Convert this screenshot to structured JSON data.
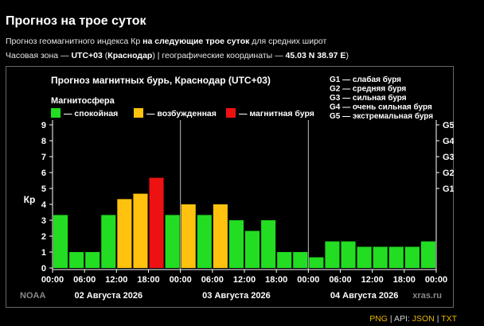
{
  "page": {
    "title": "Прогноз на трое суток",
    "subtitle": {
      "part1": "Прогноз геомагнитного индекса Кр ",
      "part2_bold": "на следующие трое суток",
      "part3": " для средних широт"
    },
    "info": {
      "tz_label": "Часовая зона — ",
      "tz_value": "UTC+03",
      "city_open": " (",
      "city": "Краснодар",
      "coords_label": ") | географические координаты — ",
      "coords_value": "45.03 N 38.97 E",
      "close": ")"
    }
  },
  "footer": {
    "png": "PNG",
    "sep1": "|",
    "api_label": "API:",
    "json": "JSON",
    "sep2": "|",
    "txt": "TXT"
  },
  "chart_data": {
    "type": "bar",
    "title": "Прогноз магнитных бурь, Краснодар (UTC+03)",
    "ylabel": "Кр",
    "ylim": [
      0,
      9
    ],
    "yticks": [
      "0",
      "1",
      "2",
      "3",
      "4",
      "5",
      "6",
      "7",
      "8",
      "9"
    ],
    "right_ticks": [
      {
        "kp": 5,
        "label": "G1"
      },
      {
        "kp": 6,
        "label": "G2"
      },
      {
        "kp": 7,
        "label": "G3"
      },
      {
        "kp": 8,
        "label": "G4"
      },
      {
        "kp": 9,
        "label": "G5"
      }
    ],
    "xticks": [
      "00:00",
      "06:00",
      "12:00",
      "18:00",
      "00:00",
      "06:00",
      "12:00",
      "18:00",
      "00:00",
      "06:00",
      "12:00",
      "18:00",
      "00:00"
    ],
    "days": [
      "02 Августа 2026",
      "03 Августа 2026",
      "04 Августа 2026"
    ],
    "legend_title": "Магнитосфера",
    "legend": [
      {
        "label": "— спокойная",
        "color": "#22dd22"
      },
      {
        "label": "— возбужденная",
        "color": "#ffc20e"
      },
      {
        "label": "— магнитная буря",
        "color": "#ee1111"
      }
    ],
    "storm_scale": [
      "G1 — слабая буря",
      "G2 — средняя буря",
      "G3 — сильная буря",
      "G4 — очень сильная буря",
      "G5 — экстремальная буря"
    ],
    "watermark_left": "NOAA",
    "watermark_right": "xras.ru",
    "values": [
      3.33,
      1.0,
      1.0,
      3.33,
      4.33,
      4.67,
      5.67,
      3.33,
      4.0,
      3.33,
      4.0,
      3.0,
      2.33,
      3.0,
      1.0,
      1.0,
      0.67,
      1.67,
      1.67,
      1.33,
      1.33,
      1.33,
      1.33,
      1.67
    ],
    "levels": [
      "q",
      "q",
      "q",
      "q",
      "a",
      "a",
      "s",
      "q",
      "a",
      "q",
      "a",
      "q",
      "q",
      "q",
      "q",
      "q",
      "q",
      "q",
      "q",
      "q",
      "q",
      "q",
      "q",
      "q"
    ],
    "level_colors": {
      "q": "#22dd22",
      "a": "#ffc20e",
      "s": "#ee1111"
    },
    "grid": true
  }
}
